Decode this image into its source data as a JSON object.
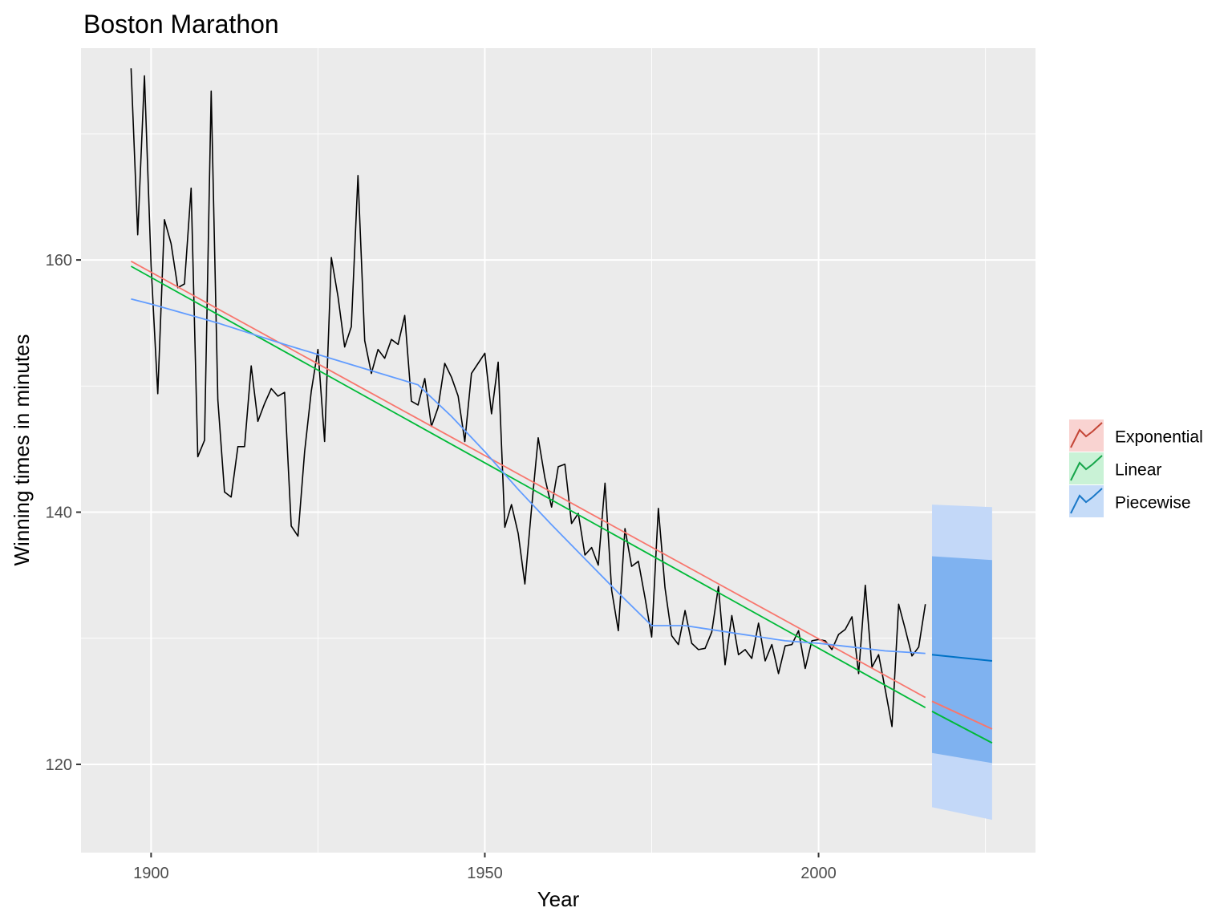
{
  "chart_data": {
    "type": "line",
    "title": "Boston Marathon",
    "xlabel": "Year",
    "ylabel": "Winning times in minutes",
    "xlim": [
      1889.5,
      2032.5
    ],
    "ylim": [
      113,
      176.8
    ],
    "x_ticks": [
      1900,
      1950,
      2000
    ],
    "y_ticks": [
      120,
      140,
      160
    ],
    "x_tick_labels": [
      "1900",
      "1950",
      "2000"
    ],
    "y_tick_labels": [
      "120",
      "140",
      "160"
    ],
    "grid": true,
    "legend_position": "right",
    "colors": {
      "panel": "#ebebeb",
      "grid": "#ffffff",
      "observed": "#000000",
      "exponential": "#f8766d",
      "linear": "#00ba38",
      "piecewise": "#619cff",
      "forecast_piecewise": "#0072c6",
      "band80": "#7fb2f0",
      "band95": "#c3d8f8",
      "key_exponential_line": "#c44536",
      "key_exponential_fill": "#f9d3d1",
      "key_linear_line": "#16a54a",
      "key_linear_fill": "#c9f2d6",
      "key_piecewise_line": "#1a78c8",
      "key_piecewise_fill": "#c6dcf8"
    },
    "observed": {
      "x": [
        1897,
        1898,
        1899,
        1900,
        1901,
        1902,
        1903,
        1904,
        1905,
        1906,
        1907,
        1908,
        1909,
        1910,
        1911,
        1912,
        1913,
        1914,
        1915,
        1916,
        1917,
        1918,
        1919,
        1920,
        1921,
        1922,
        1923,
        1924,
        1925,
        1926,
        1927,
        1928,
        1929,
        1930,
        1931,
        1932,
        1933,
        1934,
        1935,
        1936,
        1937,
        1938,
        1939,
        1940,
        1941,
        1942,
        1943,
        1944,
        1945,
        1946,
        1947,
        1948,
        1949,
        1950,
        1951,
        1952,
        1953,
        1954,
        1955,
        1956,
        1957,
        1958,
        1959,
        1960,
        1961,
        1962,
        1963,
        1964,
        1965,
        1966,
        1967,
        1968,
        1969,
        1970,
        1971,
        1972,
        1973,
        1974,
        1975,
        1976,
        1977,
        1978,
        1979,
        1980,
        1981,
        1982,
        1983,
        1984,
        1985,
        1986,
        1987,
        1988,
        1989,
        1990,
        1991,
        1992,
        1993,
        1994,
        1995,
        1996,
        1997,
        1998,
        1999,
        2000,
        2001,
        2002,
        2003,
        2004,
        2005,
        2006,
        2007,
        2008,
        2009,
        2010,
        2011,
        2012,
        2013,
        2014,
        2015,
        2016
      ],
      "y": [
        175.2,
        162.0,
        174.6,
        159.5,
        149.4,
        163.2,
        161.3,
        157.8,
        158.1,
        165.7,
        144.4,
        145.7,
        173.4,
        148.9,
        141.6,
        141.2,
        145.2,
        145.2,
        151.6,
        147.2,
        148.6,
        149.8,
        149.2,
        149.5,
        138.9,
        138.1,
        144.8,
        149.6,
        152.9,
        145.6,
        160.2,
        157.1,
        153.1,
        154.7,
        166.7,
        153.6,
        151.0,
        152.9,
        152.2,
        153.7,
        153.3,
        155.6,
        148.8,
        148.5,
        150.6,
        146.8,
        148.3,
        151.8,
        150.7,
        149.2,
        145.6,
        151.0,
        151.8,
        152.6,
        147.8,
        151.9,
        138.8,
        140.6,
        138.3,
        134.3,
        140.3,
        145.9,
        142.7,
        140.4,
        143.6,
        143.8,
        139.1,
        139.9,
        136.6,
        137.2,
        135.8,
        142.3,
        133.8,
        130.6,
        138.7,
        135.7,
        136.1,
        133.2,
        130.1,
        140.3,
        134.0,
        130.2,
        129.5,
        132.2,
        129.6,
        129.1,
        129.2,
        130.5,
        134.1,
        127.9,
        131.8,
        128.7,
        129.1,
        128.4,
        131.2,
        128.2,
        129.5,
        127.2,
        129.4,
        129.5,
        130.6,
        127.6,
        129.8,
        129.9,
        129.8,
        129.1,
        130.3,
        130.7,
        131.7,
        127.2,
        134.2,
        127.7,
        128.7,
        125.9,
        123.0,
        132.7,
        130.7,
        128.6,
        129.3,
        132.7
      ]
    },
    "series": [
      {
        "name": "Exponential",
        "x": [
          1897,
          2016,
          2017,
          2026
        ],
        "y": [
          159.9,
          125.3,
          125.0,
          122.8
        ]
      },
      {
        "name": "Linear",
        "x": [
          1897,
          2016,
          2017,
          2026
        ],
        "y": [
          159.5,
          124.5,
          124.2,
          121.7
        ]
      },
      {
        "name": "Piecewise",
        "x": [
          1897,
          1900,
          1910,
          1920,
          1930,
          1940,
          1945,
          1950,
          1955,
          1960,
          1965,
          1970,
          1975,
          1980,
          1985,
          1990,
          1995,
          2000,
          2005,
          2010,
          2016,
          2017,
          2026
        ],
        "y": [
          156.9,
          156.5,
          155.0,
          153.3,
          151.7,
          150.1,
          147.6,
          144.8,
          141.8,
          139.0,
          136.3,
          133.6,
          131.0,
          131.0,
          130.6,
          130.2,
          129.8,
          129.6,
          129.3,
          129.0,
          128.8,
          128.7,
          128.2
        ]
      }
    ],
    "forecast_intervals": {
      "x": [
        2017,
        2026
      ],
      "lower80": [
        120.9,
        120.1
      ],
      "upper80": [
        136.5,
        136.2
      ],
      "lower95": [
        116.6,
        115.6
      ],
      "upper95": [
        140.6,
        140.4
      ]
    },
    "legend": [
      "Exponential",
      "Linear",
      "Piecewise"
    ]
  }
}
